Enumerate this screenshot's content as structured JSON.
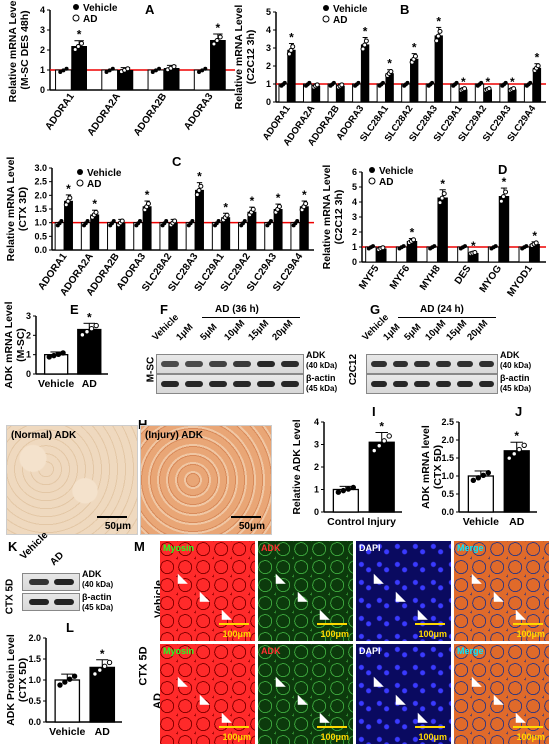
{
  "panels": {
    "A": {
      "label": "A",
      "ylabel": "Relative mRNA Level",
      "ylabel2": "(M-SC DES 48h)",
      "legend": [
        "Vehicle",
        "AD"
      ],
      "chart_data": {
        "type": "bar",
        "categories": [
          "ADORA1",
          "ADORA2A",
          "ADORA2B",
          "ADORA3"
        ],
        "series": [
          {
            "name": "Vehicle",
            "values": [
              1.0,
              1.0,
              1.0,
              1.0
            ]
          },
          {
            "name": "AD",
            "values": [
              2.2,
              1.0,
              1.1,
              2.5
            ]
          }
        ],
        "significant": [
          true,
          false,
          false,
          true
        ],
        "ylim": [
          0,
          4
        ],
        "yticks": [
          0,
          1,
          2,
          3,
          4
        ]
      }
    },
    "B": {
      "label": "B",
      "ylabel": "Relative mRNA Level",
      "ylabel2": "(C2C12 3h)",
      "legend": [
        "Vehicle",
        "AD"
      ],
      "chart_data": {
        "type": "bar",
        "categories": [
          "ADORA1",
          "ADORA2A",
          "ADORA2B",
          "ADORA3",
          "SLC28A1",
          "SLC28A2",
          "SLC28A3",
          "SLC29A1",
          "SLC29A2",
          "SLC29A3",
          "SLC29A4"
        ],
        "series": [
          {
            "name": "Vehicle",
            "values": [
              1,
              1,
              1,
              1,
              1,
              1,
              1,
              1,
              1,
              1,
              1
            ]
          },
          {
            "name": "AD",
            "values": [
              2.9,
              0.9,
              0.9,
              3.2,
              1.6,
              2.4,
              3.7,
              0.7,
              0.7,
              0.7,
              1.9
            ]
          }
        ],
        "significant": [
          true,
          false,
          false,
          true,
          true,
          true,
          true,
          true,
          true,
          true,
          true
        ],
        "ylim": [
          0,
          5
        ],
        "yticks": [
          0,
          1,
          2,
          3,
          4,
          5
        ]
      }
    },
    "C": {
      "label": "C",
      "ylabel": "Relative mRNA Level",
      "ylabel2": "(CTX 3D)",
      "legend": [
        "Vehicle",
        "AD"
      ],
      "chart_data": {
        "type": "bar",
        "categories": [
          "ADORA1",
          "ADORA2A",
          "ADORA2B",
          "ADORA3",
          "SLC28A2",
          "SLC28A3",
          "SLC29A1",
          "SLC29A2",
          "SLC29A3",
          "SLC29A4"
        ],
        "series": [
          {
            "name": "Vehicle",
            "values": [
              1,
              1,
              1,
              1,
              1,
              1,
              1,
              1,
              1,
              1
            ]
          },
          {
            "name": "AD",
            "values": [
              1.8,
              1.3,
              1.0,
              1.6,
              1.0,
              2.2,
              1.2,
              1.4,
              1.5,
              1.6
            ]
          }
        ],
        "significant": [
          true,
          true,
          false,
          true,
          false,
          true,
          true,
          true,
          true,
          true
        ],
        "ylim": [
          0,
          3
        ],
        "yticks": [
          0.0,
          0.5,
          1.0,
          1.5,
          2.0,
          2.5,
          3.0
        ]
      }
    },
    "D": {
      "label": "D",
      "ylabel": "Relative mRNA Level",
      "ylabel2": "(C2C12 3h)",
      "legend": [
        "Vehicle",
        "AD"
      ],
      "chart_data": {
        "type": "bar",
        "categories": [
          "MYF5",
          "MYF6",
          "MYH8",
          "DES",
          "MYOG",
          "MYOD1"
        ],
        "series": [
          {
            "name": "Vehicle",
            "values": [
              1,
              1,
              1,
              1,
              1,
              1
            ]
          },
          {
            "name": "AD",
            "values": [
              0.9,
              1.4,
              4.3,
              0.6,
              4.4,
              1.2
            ]
          }
        ],
        "significant": [
          false,
          true,
          true,
          true,
          true,
          true
        ],
        "ylim": [
          0,
          6
        ],
        "yticks": [
          0,
          1,
          2,
          3,
          4,
          5,
          6
        ]
      }
    },
    "E": {
      "label": "E",
      "ylabel": "ADK mRNA Level",
      "ylabel2": "(M-SC)",
      "chart_data": {
        "type": "bar",
        "categories": [
          "Vehicle",
          "AD"
        ],
        "values": [
          1.0,
          2.3
        ],
        "significant": [
          false,
          true
        ],
        "ylim": [
          0,
          3
        ],
        "yticks": [
          0,
          1,
          2,
          3
        ]
      }
    },
    "F": {
      "label": "F",
      "group": "AD (36 h)",
      "lanes": [
        "Vehicle",
        "1μM",
        "5μM",
        "10μM",
        "15μM",
        "20μM"
      ],
      "side": "M-SC",
      "bands": [
        "ADK",
        "(40 kDa)",
        "β-actin",
        "(45 kDa)"
      ]
    },
    "G": {
      "label": "G",
      "group": "AD (24 h)",
      "lanes": [
        "Vehicle",
        "1μM",
        "5μM",
        "10μM",
        "15μM",
        "20μM"
      ],
      "side": "C2C12",
      "bands": [
        "ADK",
        "(40 kDa)",
        "β-actin",
        "(45 kDa)"
      ]
    },
    "H": {
      "label": "H",
      "normal": "(Normal) ADK",
      "injury": "(Injury) ADK",
      "scale": "50μm"
    },
    "I": {
      "label": "I",
      "ylabel": "Relative ADK Level",
      "chart_data": {
        "type": "bar",
        "categories": [
          "Control",
          "Injury"
        ],
        "values": [
          1.0,
          3.1
        ],
        "significant": [
          false,
          true
        ],
        "ylim": [
          0,
          4
        ],
        "yticks": [
          0,
          1,
          2,
          3,
          4
        ]
      }
    },
    "J": {
      "label": "J",
      "ylabel": "ADK mRNA level",
      "ylabel2": "(CTX 5D)",
      "chart_data": {
        "type": "bar",
        "categories": [
          "Vehicle",
          "AD"
        ],
        "values": [
          1.0,
          1.7
        ],
        "significant": [
          false,
          true
        ],
        "ylim": [
          0.0,
          2.5
        ],
        "yticks": [
          0.0,
          0.5,
          1.0,
          1.5,
          2.0,
          2.5
        ]
      }
    },
    "K": {
      "label": "K",
      "lanes": [
        "Vehicle",
        "AD"
      ],
      "side": "CTX 5D",
      "bands": [
        "ADK",
        "(40 kDa)",
        "β-actin",
        "(45 kDa)"
      ]
    },
    "L": {
      "label": "L",
      "ylabel": "ADK Protein Level",
      "ylabel2": "(CTX 5D)",
      "chart_data": {
        "type": "bar",
        "categories": [
          "Vehicle",
          "AD"
        ],
        "values": [
          1.0,
          1.3
        ],
        "significant": [
          false,
          true
        ],
        "ylim": [
          0.0,
          2.0
        ],
        "yticks": [
          0.0,
          0.5,
          1.0,
          1.5,
          2.0
        ]
      }
    },
    "M": {
      "label": "M",
      "side": "CTX 5D",
      "rows": [
        "Vehicle",
        "AD"
      ],
      "cols": [
        "Myosin",
        "ADK",
        "DAPI",
        "Merge"
      ],
      "scale": "100μm",
      "colors": {
        "Myosin": "#e01818",
        "ADK": "#2a8a2a",
        "DAPI": "#1a1ad0",
        "Merge": "#c06030"
      }
    }
  },
  "star": "*"
}
